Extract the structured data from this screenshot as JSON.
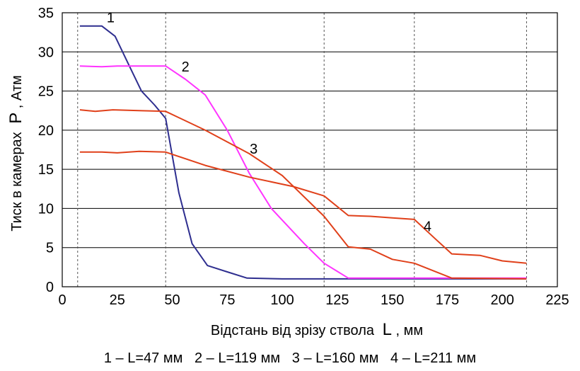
{
  "chart_data": {
    "type": "line",
    "xlabel": "Відстань від зрізу ствола",
    "xlabel_symbol": "L",
    "xlabel_unit": ", мм",
    "ylabel": "Тиск в камерах",
    "ylabel_symbol": "P",
    "ylabel_unit": ", Атм",
    "xlim": [
      0,
      225
    ],
    "ylim": [
      0,
      35
    ],
    "xticks": [
      0,
      25,
      50,
      75,
      100,
      125,
      150,
      175,
      200,
      225
    ],
    "yticks": [
      0,
      5,
      10,
      15,
      20,
      25,
      30,
      35
    ],
    "vertical_dashed_lines_x": [
      7,
      47,
      119,
      160,
      211
    ],
    "grid": "horizontal solid, vertical dashed",
    "legend_text": "1 – L=47 мм   2 – L=119 мм   3 – L=160 мм   4 – L=211 мм",
    "series": [
      {
        "name": "1",
        "color": "#2e2e8f",
        "x": [
          8,
          18,
          24,
          30,
          36,
          42,
          47,
          53,
          59,
          66,
          75,
          84,
          100,
          119,
          130,
          160,
          211
        ],
        "y": [
          33.3,
          33.3,
          32.0,
          28.5,
          25.0,
          23.2,
          21.5,
          12.0,
          5.5,
          2.7,
          1.9,
          1.1,
          1.0,
          1.0,
          1.0,
          1.0,
          1.0
        ]
      },
      {
        "name": "2",
        "color": "#ff33ff",
        "x": [
          8,
          18,
          25,
          35,
          47,
          56,
          65,
          75,
          85,
          95,
          101,
          110,
          119,
          130,
          150,
          211
        ],
        "y": [
          28.2,
          28.1,
          28.2,
          28.2,
          28.2,
          26.5,
          24.5,
          20.0,
          14.5,
          10.0,
          8.2,
          5.5,
          3.0,
          1.1,
          1.1,
          1.1
        ]
      },
      {
        "name": "3",
        "color": "#e0401a",
        "x": [
          8,
          15,
          23,
          35,
          47,
          65,
          85,
          100,
          119,
          130,
          140,
          150,
          160,
          177,
          211
        ],
        "y": [
          22.6,
          22.4,
          22.6,
          22.5,
          22.4,
          20.0,
          17.0,
          14.2,
          9.0,
          5.1,
          4.8,
          3.5,
          3.0,
          1.1,
          1.0
        ]
      },
      {
        "name": "4",
        "color": "#e0401a",
        "x": [
          8,
          18,
          25,
          35,
          47,
          65,
          85,
          105,
          119,
          130,
          140,
          150,
          160,
          170,
          177,
          190,
          200,
          211
        ],
        "y": [
          17.2,
          17.2,
          17.1,
          17.3,
          17.2,
          15.5,
          14.0,
          12.8,
          11.6,
          9.1,
          9.0,
          8.8,
          8.6,
          6.0,
          4.2,
          4.0,
          3.3,
          3.0
        ]
      }
    ],
    "series_labels": [
      {
        "text": "1",
        "x": 22,
        "y": 33.8
      },
      {
        "text": "2",
        "x": 56,
        "y": 27.5
      },
      {
        "text": "3",
        "x": 87,
        "y": 17.0
      },
      {
        "text": "4",
        "x": 166,
        "y": 7.1
      }
    ]
  }
}
